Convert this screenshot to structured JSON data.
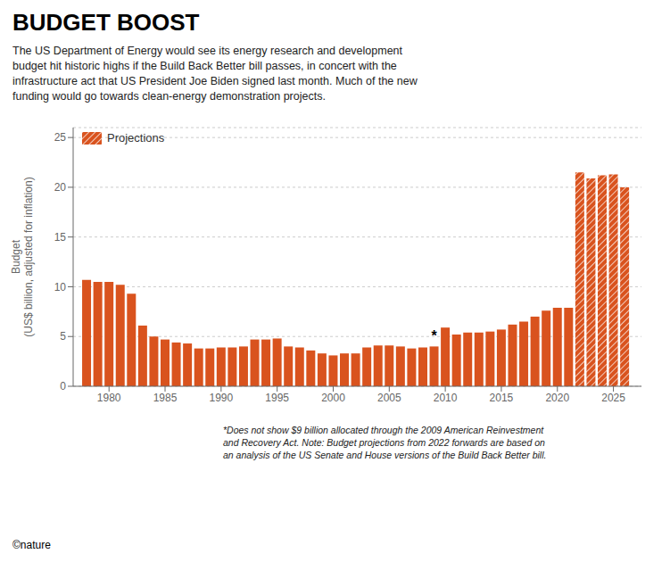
{
  "chart_data": {
    "type": "bar",
    "title": "BUDGET BOOST",
    "subtitle": "The US Department of Energy would see its energy research and development\nbudget hit historic highs if the Build Back Better bill passes, in concert with the\ninfrastructure act that US President Joe Biden signed last month. Much of the new\nfunding would go towards clean-energy demonstration projects.",
    "ylabel": "Budget\n(US$ billion, adjusted for inflation)",
    "footnote": "*Does not show $9 billion allocated through the 2009 American Reinvestment\nand Recovery Act. Note: Budget projections from 2022 forwards are based on\nan analysis of the US Senate and House versions of the Build Back Better bill.",
    "copyright": "©nature",
    "x": [
      1978,
      1979,
      1980,
      1981,
      1982,
      1983,
      1984,
      1985,
      1986,
      1987,
      1988,
      1989,
      1990,
      1991,
      1992,
      1993,
      1994,
      1995,
      1996,
      1997,
      1998,
      1999,
      2000,
      2001,
      2002,
      2003,
      2004,
      2005,
      2006,
      2007,
      2008,
      2009,
      2010,
      2011,
      2012,
      2013,
      2014,
      2015,
      2016,
      2017,
      2018,
      2019,
      2020,
      2021,
      2022,
      2023,
      2024,
      2025,
      2026
    ],
    "series": [
      {
        "color": "#d9531e",
        "values": [
          10.7,
          10.5,
          10.5,
          10.2,
          9.3,
          6.1,
          5.0,
          4.7,
          4.4,
          4.3,
          3.8,
          3.8,
          3.9,
          3.9,
          4.0,
          4.7,
          4.7,
          4.8,
          4.0,
          3.9,
          3.6,
          3.3,
          3.1,
          3.3,
          3.3,
          3.9,
          4.1,
          4.1,
          4.0,
          3.8,
          3.9,
          4.0,
          5.9,
          5.2,
          5.4,
          5.4,
          5.5,
          5.7,
          6.2,
          6.5,
          7.0,
          7.6,
          7.9,
          7.9,
          null,
          null,
          null,
          null,
          null
        ]
      },
      {
        "name": "Projections",
        "color": "#d9531e",
        "values": [
          null,
          null,
          null,
          null,
          null,
          null,
          null,
          null,
          null,
          null,
          null,
          null,
          null,
          null,
          null,
          null,
          null,
          null,
          null,
          null,
          null,
          null,
          null,
          null,
          null,
          null,
          null,
          null,
          null,
          null,
          null,
          null,
          null,
          null,
          null,
          null,
          null,
          null,
          null,
          null,
          null,
          null,
          null,
          null,
          21.5,
          20.9,
          21.2,
          21.3,
          20.0
        ]
      }
    ],
    "annotations": [
      {
        "x": 2009,
        "text": "*"
      }
    ],
    "xlim": [
      1976.8,
      2027.5
    ],
    "xticks": [
      1980,
      1985,
      1990,
      1995,
      2000,
      2005,
      2010,
      2015,
      2020,
      2025
    ],
    "ylim": [
      0,
      26
    ],
    "yticks": [
      0,
      5,
      10,
      15,
      20,
      25
    ],
    "grid": true,
    "legend": "upper left"
  }
}
